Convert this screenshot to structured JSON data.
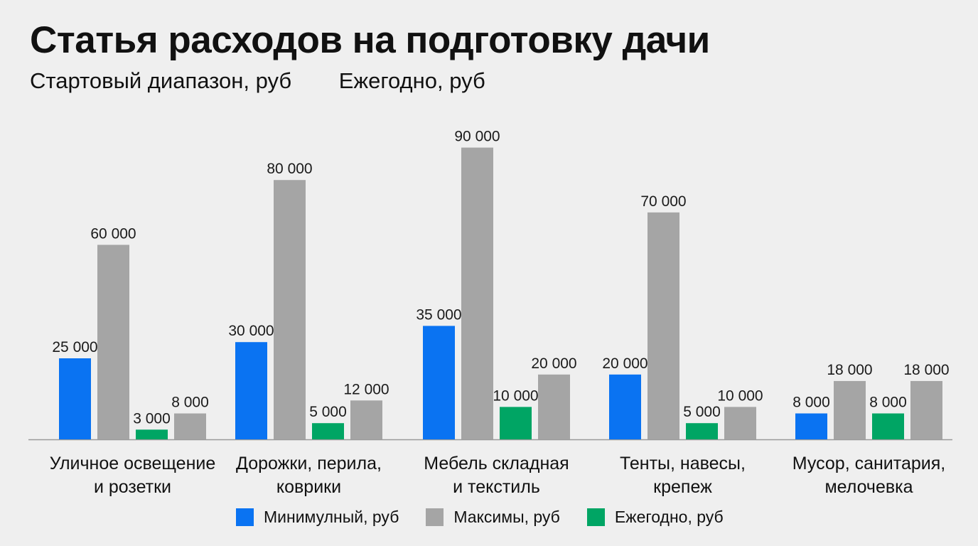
{
  "header": {
    "title": "Статья расходов на подготовку дачи",
    "subtitle_start": "Стартовый диапазон, руб",
    "subtitle_yearly": "Ежегодно, руб"
  },
  "colors": {
    "min": "#0a73f2",
    "max": "#a5a5a5",
    "yearly": "#00a564",
    "axis": "#9a9a9a"
  },
  "chart_data": {
    "type": "bar",
    "title": "Статья расходов на подготовку дачи",
    "categories": [
      [
        "Уличное освещение",
        "и розетки"
      ],
      [
        "Дорожки, перила,",
        "коврики"
      ],
      [
        "Мебель складная",
        "и текстиль"
      ],
      [
        "Тенты, навесы,",
        "крепеж"
      ],
      [
        "Мусор, санитария,",
        "мелочевка"
      ]
    ],
    "series": [
      {
        "name": "Минимулный, руб",
        "values": [
          25000,
          30000,
          35000,
          20000,
          8000
        ]
      },
      {
        "name": "Максимы, руб",
        "values": [
          60000,
          80000,
          90000,
          70000,
          18000
        ]
      },
      {
        "name": "Ежегодно, руб",
        "values": [
          3000,
          5000,
          10000,
          5000,
          8000
        ]
      },
      {
        "name": "",
        "values": [
          8000,
          12000,
          20000,
          10000,
          18000
        ]
      }
    ],
    "ylim": [
      0,
      100000
    ],
    "legend_position": "bottom-center",
    "grid": false
  }
}
